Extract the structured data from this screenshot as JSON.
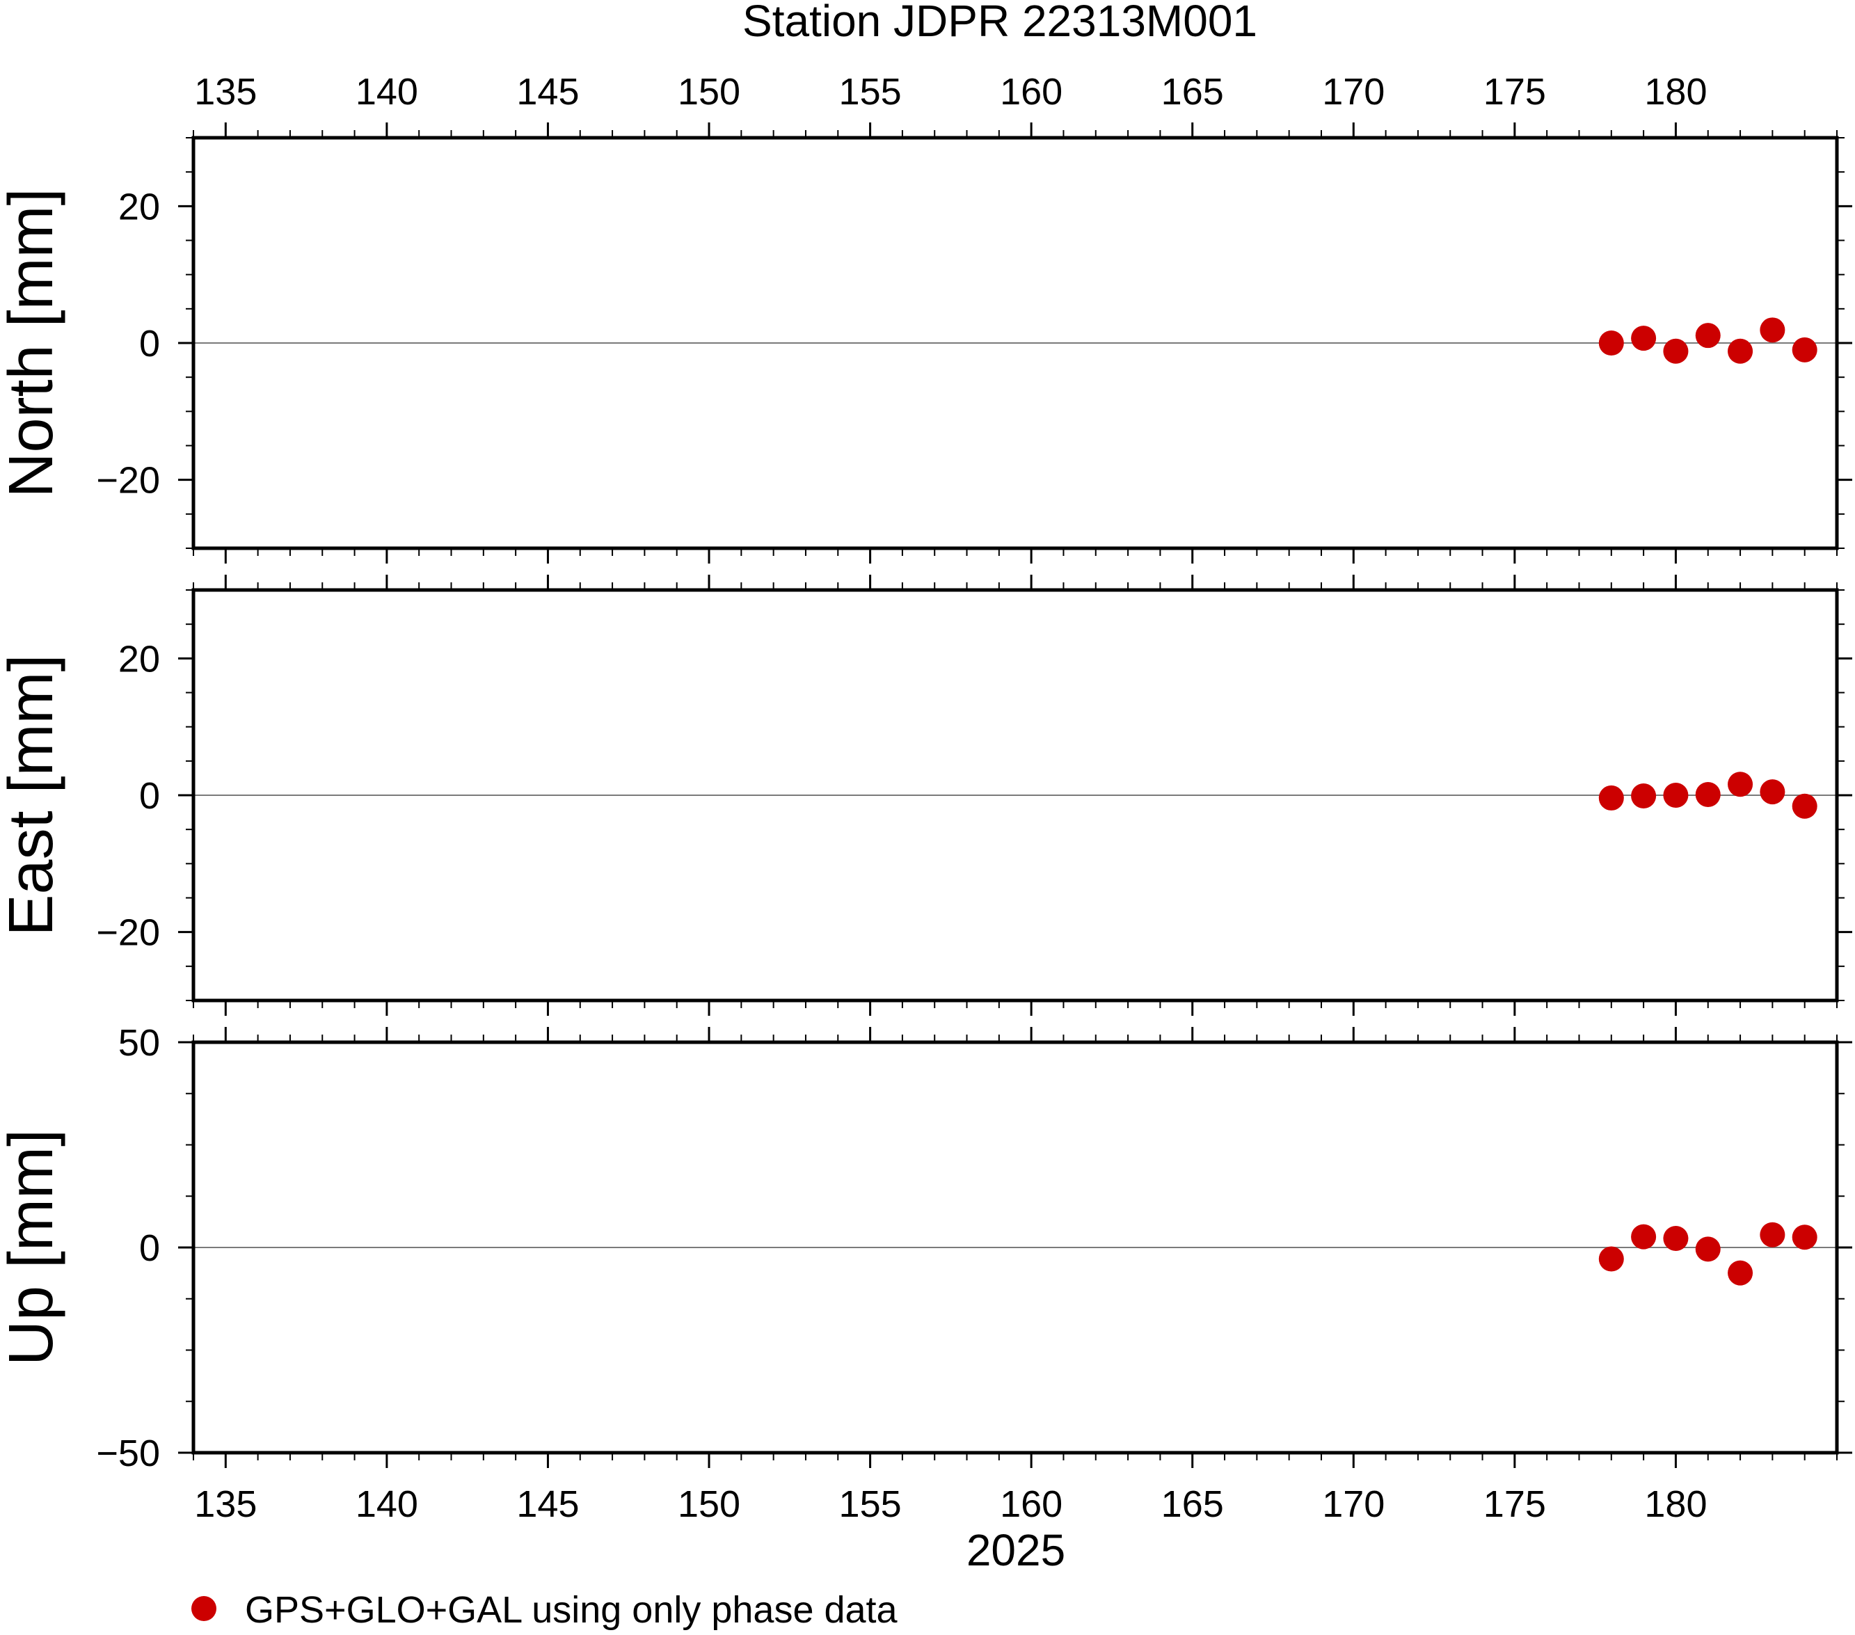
{
  "chart_data": {
    "type": "scatter",
    "title": "Station JDPR 22313M001",
    "xlabel": "2025",
    "xlim": [
      134,
      185
    ],
    "x_ticks": [
      135,
      140,
      145,
      150,
      155,
      160,
      165,
      170,
      175,
      180
    ],
    "x_tick_labels": [
      "135",
      "140",
      "145",
      "150",
      "155",
      "160",
      "165",
      "170",
      "175",
      "180"
    ],
    "grid": false,
    "legend_position": "bottom-left",
    "series_color": "#cc0000",
    "legend": {
      "label": "GPS+GLO+GAL using only phase data"
    },
    "panels": [
      {
        "key": "north",
        "ylabel": "North [mm]",
        "ylim": [
          -30,
          30
        ],
        "y_ticks": [
          20,
          0,
          -20
        ],
        "y_tick_labels": [
          "20",
          "0",
          "−20"
        ],
        "x": [
          178,
          179,
          180,
          181,
          182,
          183,
          184
        ],
        "values": [
          0.0,
          0.7,
          -1.2,
          1.1,
          -1.2,
          1.9,
          -1.0
        ]
      },
      {
        "key": "east",
        "ylabel": "East [mm]",
        "ylim": [
          -30,
          30
        ],
        "y_ticks": [
          20,
          0,
          -20
        ],
        "y_tick_labels": [
          "20",
          "0",
          "−20"
        ],
        "x": [
          178,
          179,
          180,
          181,
          182,
          183,
          184
        ],
        "values": [
          -0.4,
          -0.1,
          0.0,
          0.1,
          1.6,
          0.5,
          -1.6
        ]
      },
      {
        "key": "up",
        "ylabel": "Up [mm]",
        "ylim": [
          -50,
          50
        ],
        "y_ticks": [
          50,
          0,
          -50
        ],
        "y_tick_labels": [
          "50",
          "0",
          "−50"
        ],
        "x": [
          178,
          179,
          180,
          181,
          182,
          183,
          184
        ],
        "values": [
          -2.8,
          2.6,
          2.2,
          -0.4,
          -6.2,
          3.1,
          2.5
        ]
      }
    ]
  }
}
